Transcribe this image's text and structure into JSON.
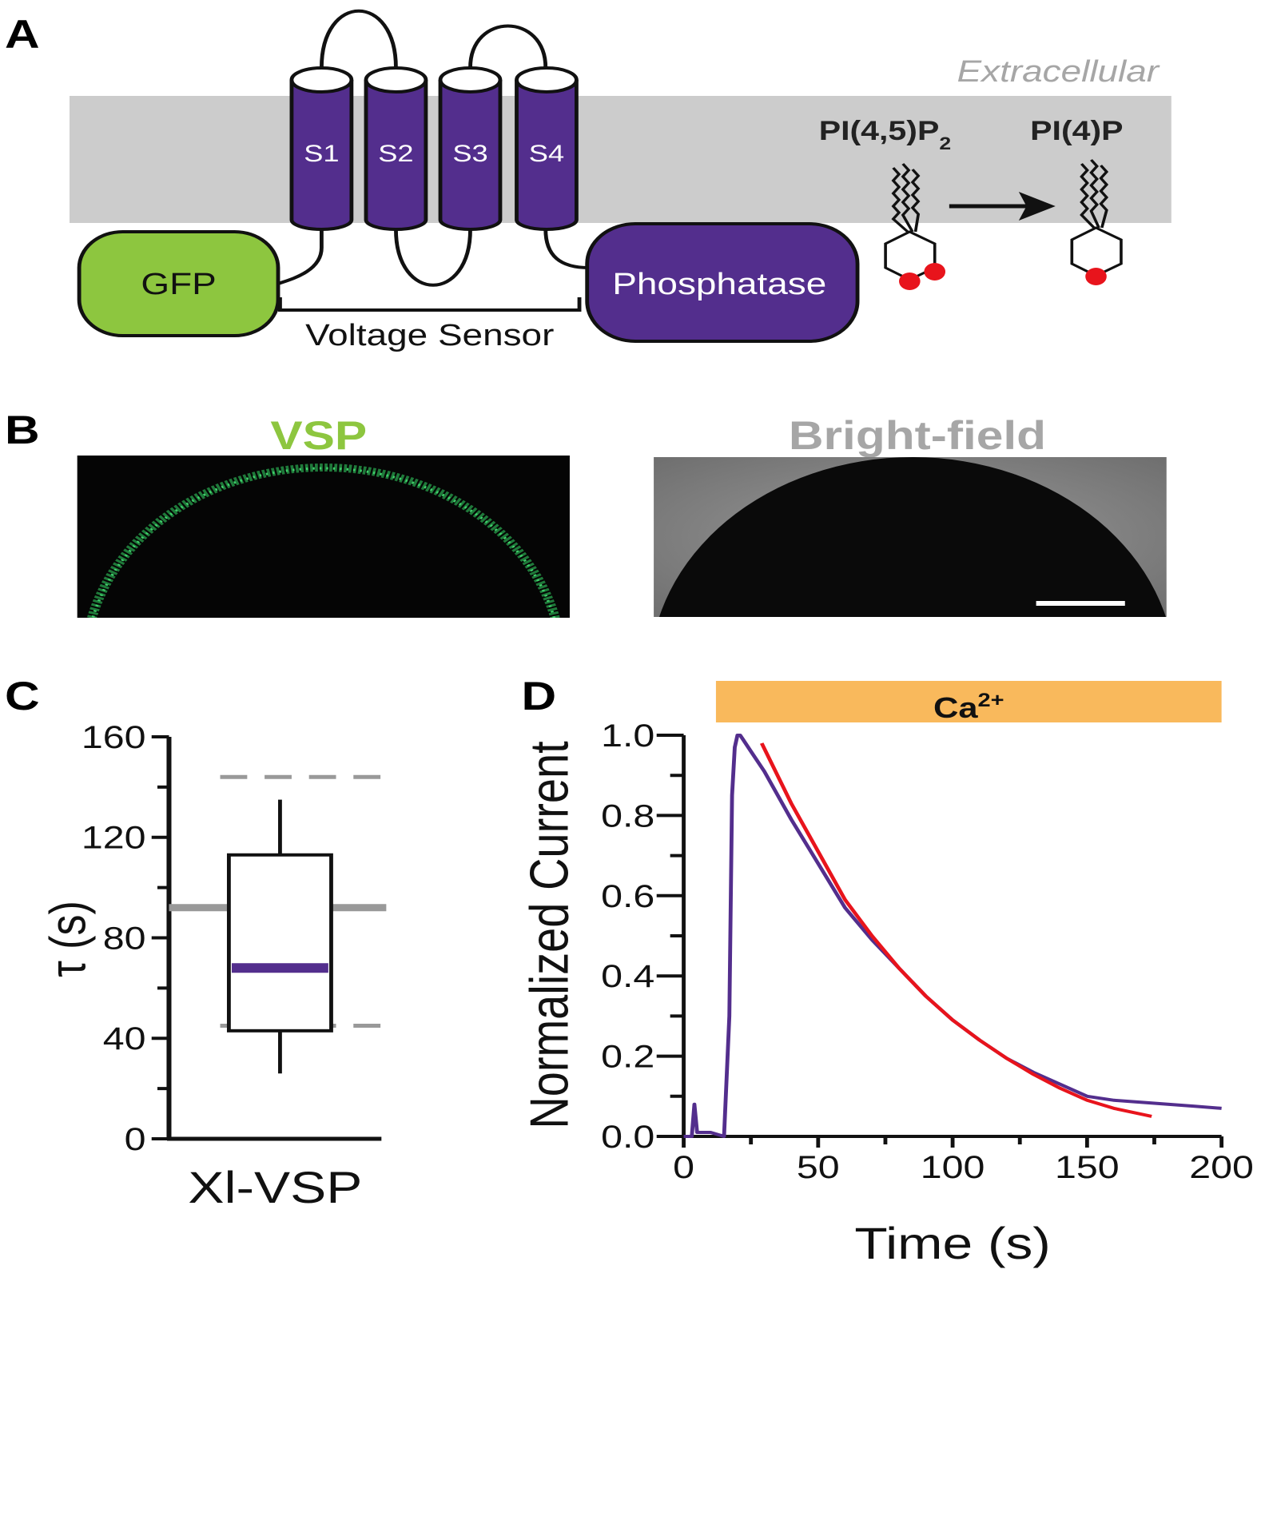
{
  "panel_labels": [
    "A",
    "B",
    "C",
    "D"
  ],
  "diagram": {
    "region": "Extracellular",
    "segments": [
      "S1",
      "S2",
      "S3",
      "S4"
    ],
    "tag": "GFP",
    "domain": "Phosphatase",
    "bracket": "Voltage Sensor",
    "substrate": {
      "text": "PI(4,5)P",
      "subscript": "2"
    },
    "product": "PI(4)P"
  },
  "images": {
    "left": "VSP",
    "right": "Bright-field"
  },
  "chart_data": [
    {
      "type": "box",
      "ylabel": "τ (s)",
      "categories": [
        "Xl-VSP"
      ],
      "boxes": [
        {
          "whislo": 26,
          "q1": 43,
          "med": 68,
          "q3": 113,
          "whishi": 135
        }
      ],
      "median_color": "#532e8d",
      "reference_lines": [
        {
          "value": 92,
          "style": "solid"
        },
        {
          "value": 144,
          "style": "dashed"
        },
        {
          "value": 45,
          "style": "dashed"
        }
      ],
      "ylim": [
        0,
        160
      ],
      "yticks": [
        0,
        40,
        80,
        120,
        160
      ],
      "yminorticks": [
        20,
        60,
        100,
        140
      ]
    },
    {
      "type": "line",
      "xlabel": "Time (s)",
      "ylabel": "Normalized Current",
      "annotation": {
        "text": "Ca",
        "superscript": "2+",
        "span": [
          12,
          200
        ],
        "color": "#f9b95c"
      },
      "series": [
        {
          "color": "#532e8d",
          "x": [
            0,
            3,
            4,
            5,
            6,
            10,
            15,
            17,
            18,
            19,
            20,
            21,
            22,
            25,
            30,
            40,
            50,
            60,
            70,
            80,
            90,
            100,
            110,
            120,
            130,
            140,
            150,
            160,
            170,
            180,
            190,
            200
          ],
          "values": [
            0,
            0,
            0.08,
            0.01,
            0.01,
            0.01,
            0,
            0.3,
            0.85,
            0.97,
            1.0,
            1.0,
            0.99,
            0.96,
            0.91,
            0.79,
            0.68,
            0.57,
            0.49,
            0.42,
            0.35,
            0.29,
            0.24,
            0.195,
            0.16,
            0.13,
            0.1,
            0.09,
            0.085,
            0.08,
            0.075,
            0.07
          ]
        },
        {
          "color": "#e8141c",
          "x": [
            29,
            40,
            50,
            60,
            70,
            80,
            90,
            100,
            110,
            120,
            130,
            140,
            150,
            160,
            174
          ],
          "values": [
            0.98,
            0.83,
            0.71,
            0.59,
            0.5,
            0.42,
            0.35,
            0.29,
            0.24,
            0.195,
            0.155,
            0.12,
            0.09,
            0.07,
            0.05
          ]
        }
      ],
      "xlim": [
        0,
        200
      ],
      "xticks": [
        0,
        50,
        100,
        150,
        200
      ],
      "xminorticks": [
        25,
        75,
        125,
        175
      ],
      "ylim": [
        0,
        1
      ],
      "yticks": [
        {
          "value": 0,
          "label": "0.0"
        },
        0.2,
        0.4,
        0.6,
        0.8,
        {
          "value": 1,
          "label": "1.0"
        }
      ],
      "yminorticks": [
        0.1,
        0.3,
        0.5,
        0.7,
        0.9
      ]
    }
  ]
}
